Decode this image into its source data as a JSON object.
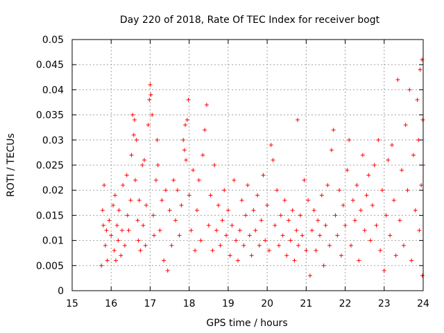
{
  "chart_data": {
    "type": "scatter",
    "title": "Day 220 of 2018, Rate Of TEC Index for receiver bogt",
    "xlabel": "GPS time / hours",
    "ylabel": "ROTI / TECUs",
    "xlim": [
      15,
      24
    ],
    "ylim": [
      0,
      0.05
    ],
    "xticks": [
      15,
      16,
      17,
      18,
      19,
      20,
      21,
      22,
      23,
      24
    ],
    "yticks": [
      0,
      0.005,
      0.01,
      0.015,
      0.02,
      0.025,
      0.03,
      0.035,
      0.04,
      0.045,
      0.05
    ],
    "ytick_labels": [
      "0",
      "0.005",
      "0.01",
      "0.015",
      "0.02",
      "0.025",
      "0.03",
      "0.035",
      "0.04",
      "0.045",
      "0.05"
    ],
    "grid": true,
    "marker": "+",
    "color": "#ff0000",
    "series": [
      {
        "name": "ROTI",
        "points": [
          [
            15.75,
            0.005
          ],
          [
            15.78,
            0.016
          ],
          [
            15.8,
            0.013
          ],
          [
            15.82,
            0.021
          ],
          [
            15.85,
            0.009
          ],
          [
            15.88,
            0.012
          ],
          [
            15.9,
            0.006
          ],
          [
            15.95,
            0.014
          ],
          [
            16.0,
            0.011
          ],
          [
            16.05,
            0.017
          ],
          [
            16.08,
            0.008
          ],
          [
            16.1,
            0.019
          ],
          [
            16.12,
            0.006
          ],
          [
            16.15,
            0.013
          ],
          [
            16.18,
            0.01
          ],
          [
            16.2,
            0.016
          ],
          [
            16.25,
            0.007
          ],
          [
            16.28,
            0.012
          ],
          [
            16.3,
            0.021
          ],
          [
            16.35,
            0.009
          ],
          [
            16.4,
            0.023
          ],
          [
            16.42,
            0.015
          ],
          [
            16.45,
            0.012
          ],
          [
            16.5,
            0.018
          ],
          [
            16.52,
            0.027
          ],
          [
            16.55,
            0.035
          ],
          [
            16.58,
            0.031
          ],
          [
            16.6,
            0.034
          ],
          [
            16.62,
            0.022
          ],
          [
            16.65,
            0.03
          ],
          [
            16.68,
            0.014
          ],
          [
            16.7,
            0.01
          ],
          [
            16.72,
            0.018
          ],
          [
            16.75,
            0.008
          ],
          [
            16.8,
            0.025
          ],
          [
            16.82,
            0.013
          ],
          [
            16.85,
            0.026
          ],
          [
            16.88,
            0.009
          ],
          [
            16.9,
            0.017
          ],
          [
            16.95,
            0.033
          ],
          [
            16.98,
            0.038
          ],
          [
            17.0,
            0.041
          ],
          [
            17.02,
            0.039
          ],
          [
            17.05,
            0.035
          ],
          [
            17.08,
            0.015
          ],
          [
            17.1,
            0.011
          ],
          [
            17.15,
            0.022
          ],
          [
            17.18,
            0.03
          ],
          [
            17.2,
            0.025
          ],
          [
            17.25,
            0.012
          ],
          [
            17.3,
            0.018
          ],
          [
            17.35,
            0.006
          ],
          [
            17.4,
            0.02
          ],
          [
            17.45,
            0.004
          ],
          [
            17.5,
            0.016
          ],
          [
            17.55,
            0.009
          ],
          [
            17.6,
            0.022
          ],
          [
            17.65,
            0.014
          ],
          [
            17.7,
            0.02
          ],
          [
            17.75,
            0.011
          ],
          [
            17.8,
            0.017
          ],
          [
            17.85,
            0.03
          ],
          [
            17.88,
            0.028
          ],
          [
            17.9,
            0.033
          ],
          [
            17.92,
            0.026
          ],
          [
            17.95,
            0.034
          ],
          [
            17.98,
            0.038
          ],
          [
            18.0,
            0.019
          ],
          [
            18.05,
            0.012
          ],
          [
            18.1,
            0.024
          ],
          [
            18.15,
            0.008
          ],
          [
            18.2,
            0.016
          ],
          [
            18.25,
            0.022
          ],
          [
            18.3,
            0.01
          ],
          [
            18.35,
            0.027
          ],
          [
            18.4,
            0.032
          ],
          [
            18.45,
            0.037
          ],
          [
            18.5,
            0.013
          ],
          [
            18.55,
            0.019
          ],
          [
            18.6,
            0.008
          ],
          [
            18.65,
            0.025
          ],
          [
            18.7,
            0.012
          ],
          [
            18.75,
            0.017
          ],
          [
            18.8,
            0.009
          ],
          [
            18.85,
            0.014
          ],
          [
            18.9,
            0.02
          ],
          [
            18.95,
            0.011
          ],
          [
            19.0,
            0.016
          ],
          [
            19.05,
            0.007
          ],
          [
            19.1,
            0.013
          ],
          [
            19.15,
            0.022
          ],
          [
            19.2,
            0.01
          ],
          [
            19.25,
            0.006
          ],
          [
            19.3,
            0.012
          ],
          [
            19.35,
            0.018
          ],
          [
            19.4,
            0.009
          ],
          [
            19.45,
            0.015
          ],
          [
            19.5,
            0.021
          ],
          [
            19.55,
            0.011
          ],
          [
            19.6,
            0.007
          ],
          [
            19.65,
            0.016
          ],
          [
            19.7,
            0.012
          ],
          [
            19.75,
            0.019
          ],
          [
            19.8,
            0.009
          ],
          [
            19.85,
            0.014
          ],
          [
            19.9,
            0.023
          ],
          [
            19.95,
            0.01
          ],
          [
            20.0,
            0.017
          ],
          [
            20.05,
            0.008
          ],
          [
            20.1,
            0.029
          ],
          [
            20.15,
            0.026
          ],
          [
            20.2,
            0.013
          ],
          [
            20.25,
            0.02
          ],
          [
            20.3,
            0.009
          ],
          [
            20.35,
            0.015
          ],
          [
            20.4,
            0.011
          ],
          [
            20.45,
            0.018
          ],
          [
            20.5,
            0.007
          ],
          [
            20.55,
            0.014
          ],
          [
            20.6,
            0.01
          ],
          [
            20.65,
            0.016
          ],
          [
            20.7,
            0.006
          ],
          [
            20.75,
            0.012
          ],
          [
            20.78,
            0.034
          ],
          [
            20.8,
            0.009
          ],
          [
            20.85,
            0.015
          ],
          [
            20.9,
            0.011
          ],
          [
            20.95,
            0.022
          ],
          [
            21.0,
            0.008
          ],
          [
            21.05,
            0.018
          ],
          [
            21.1,
            0.003
          ],
          [
            21.15,
            0.012
          ],
          [
            21.2,
            0.016
          ],
          [
            21.25,
            0.008
          ],
          [
            21.3,
            0.014
          ],
          [
            21.35,
            0.011
          ],
          [
            21.4,
            0.019
          ],
          [
            21.45,
            0.005
          ],
          [
            21.5,
            0.013
          ],
          [
            21.55,
            0.021
          ],
          [
            21.6,
            0.009
          ],
          [
            21.65,
            0.028
          ],
          [
            21.7,
            0.032
          ],
          [
            21.75,
            0.015
          ],
          [
            21.8,
            0.011
          ],
          [
            21.85,
            0.02
          ],
          [
            21.9,
            0.007
          ],
          [
            21.95,
            0.017
          ],
          [
            22.0,
            0.013
          ],
          [
            22.05,
            0.024
          ],
          [
            22.1,
            0.03
          ],
          [
            22.15,
            0.009
          ],
          [
            22.2,
            0.018
          ],
          [
            22.25,
            0.014
          ],
          [
            22.3,
            0.021
          ],
          [
            22.35,
            0.006
          ],
          [
            22.4,
            0.016
          ],
          [
            22.45,
            0.027
          ],
          [
            22.5,
            0.012
          ],
          [
            22.55,
            0.019
          ],
          [
            22.6,
            0.023
          ],
          [
            22.65,
            0.01
          ],
          [
            22.7,
            0.017
          ],
          [
            22.75,
            0.025
          ],
          [
            22.8,
            0.013
          ],
          [
            22.85,
            0.03
          ],
          [
            22.9,
            0.008
          ],
          [
            22.95,
            0.02
          ],
          [
            23.0,
            0.004
          ],
          [
            23.05,
            0.015
          ],
          [
            23.1,
            0.026
          ],
          [
            23.15,
            0.011
          ],
          [
            23.2,
            0.029
          ],
          [
            23.25,
            0.018
          ],
          [
            23.3,
            0.007
          ],
          [
            23.35,
            0.042
          ],
          [
            23.4,
            0.014
          ],
          [
            23.45,
            0.024
          ],
          [
            23.5,
            0.009
          ],
          [
            23.55,
            0.033
          ],
          [
            23.6,
            0.02
          ],
          [
            23.65,
            0.04
          ],
          [
            23.7,
            0.006
          ],
          [
            23.75,
            0.027
          ],
          [
            23.8,
            0.016
          ],
          [
            23.85,
            0.038
          ],
          [
            23.88,
            0.03
          ],
          [
            23.9,
            0.012
          ],
          [
            23.92,
            0.044
          ],
          [
            23.95,
            0.021
          ],
          [
            23.97,
            0.046
          ],
          [
            23.98,
            0.003
          ],
          [
            23.99,
            0.034
          ],
          [
            24.0,
            0.025
          ]
        ]
      }
    ]
  }
}
